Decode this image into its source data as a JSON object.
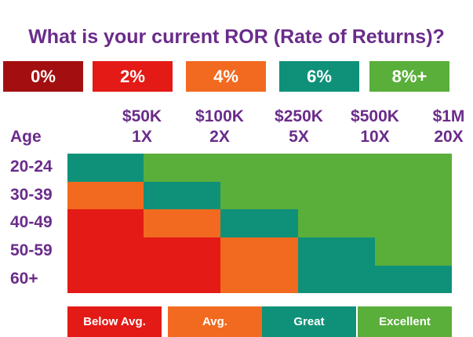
{
  "title": "What is your current ROR (Rate of Returns)?",
  "ror_options": [
    {
      "label": "0%",
      "color": "#a30f10"
    },
    {
      "label": "2%",
      "color": "#e31a16"
    },
    {
      "label": "4%",
      "color": "#f26a1f"
    },
    {
      "label": "6%",
      "color": "#0f9179"
    },
    {
      "label": "8%+",
      "color": "#5aae3a"
    }
  ],
  "chart_data": {
    "type": "heatmap",
    "title": "What is your current ROR (Rate of Returns)?",
    "ylabel": "Age",
    "columns": [
      {
        "amount": "$50K",
        "multiple": "1X"
      },
      {
        "amount": "$100K",
        "multiple": "2X"
      },
      {
        "amount": "$250K",
        "multiple": "5X"
      },
      {
        "amount": "$500K",
        "multiple": "10X"
      },
      {
        "amount": "$1M",
        "multiple": "20X"
      }
    ],
    "rows": [
      "20-24",
      "30-39",
      "40-49",
      "50-59",
      "60+"
    ],
    "cells": [
      [
        "Great",
        "Excellent",
        "Excellent",
        "Excellent",
        "Excellent"
      ],
      [
        "Avg.",
        "Great",
        "Excellent",
        "Excellent",
        "Excellent"
      ],
      [
        "Below Avg.",
        "Avg.",
        "Great",
        "Excellent",
        "Excellent"
      ],
      [
        "Below Avg.",
        "Below Avg.",
        "Avg.",
        "Great",
        "Excellent"
      ],
      [
        "Below Avg.",
        "Below Avg.",
        "Avg.",
        "Great",
        "Great"
      ]
    ],
    "legend": [
      {
        "label": "Below Avg.",
        "color": "#e31a16"
      },
      {
        "label": "Avg.",
        "color": "#f26a1f"
      },
      {
        "label": "Great",
        "color": "#0f9179"
      },
      {
        "label": "Excellent",
        "color": "#5aae3a"
      }
    ]
  }
}
